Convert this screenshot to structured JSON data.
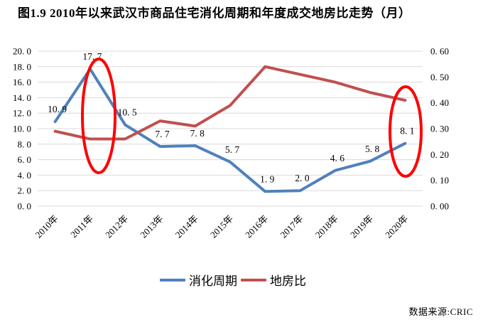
{
  "figure": {
    "title": "图1.9  2010年以来武汉市商品住宅消化周期和年度成交地房比走势（月）",
    "source_note": "数据来源:CRIC"
  },
  "chart_data": {
    "type": "line",
    "title": "图1.9  2010年以来武汉市商品住宅消化周期和年度成交地房比走势（月）",
    "categories": [
      "2010年",
      "2011年",
      "2012年",
      "2013年",
      "2014年",
      "2015年",
      "2016年",
      "2017年",
      "2018年",
      "2019年",
      "2020年"
    ],
    "series": [
      {
        "name": "消化周期",
        "axis": "left",
        "color": "#4F81BD",
        "values": [
          10.9,
          17.7,
          10.5,
          7.7,
          7.8,
          5.7,
          1.9,
          2.0,
          4.6,
          5.8,
          8.1
        ],
        "data_labels": true
      },
      {
        "name": "地房比",
        "axis": "right",
        "color": "#C0504D",
        "values": [
          0.29,
          0.26,
          0.26,
          0.33,
          0.31,
          0.39,
          0.54,
          0.51,
          0.48,
          0.44,
          0.41
        ],
        "data_labels": false
      }
    ],
    "left_axis": {
      "min": 0,
      "max": 20,
      "step": 2,
      "decimals": 1
    },
    "right_axis": {
      "min": 0,
      "max": 0.6,
      "step": 0.1,
      "decimals": 2
    },
    "grid": true,
    "grid_color": "#D9D9D9",
    "legend_position": "bottom",
    "annotations": [
      {
        "shape": "ellipse",
        "color": "#FF0000",
        "at_category": "2011年"
      },
      {
        "shape": "ellipse",
        "color": "#FF0000",
        "at_category": "2020年"
      }
    ]
  },
  "legend": {
    "items": [
      {
        "label": "消化周期",
        "color": "#4F81BD"
      },
      {
        "label": "地房比",
        "color": "#C0504D"
      }
    ]
  }
}
